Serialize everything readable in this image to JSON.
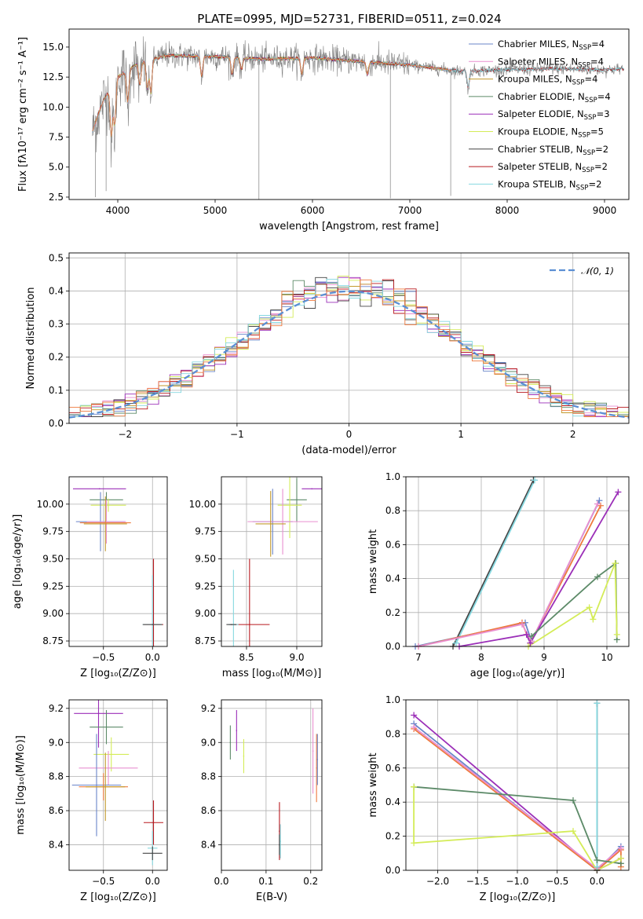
{
  "figure": {
    "title": "PLATE=0995, MJD=52731, FIBERID=0511, z=0.024"
  },
  "colors": {
    "Chabrier MILES": "#6a85c9",
    "Salpeter MILES": "#e98fd0",
    "Kroupa MILES": "#c29a2e",
    "Chabrier ELODIE": "#5c8a68",
    "Salpeter ELODIE": "#9b2fb8",
    "Kroupa ELODIE": "#d4ec58",
    "Chabrier STELIB": "#444444",
    "Salpeter STELIB": "#b8191f",
    "Kroupa STELIB": "#86d8e0",
    "orange": "#ee7a3e",
    "gauss": "#5b8fd4",
    "grid": "#b0b0b0"
  },
  "chart_data": [
    {
      "id": "spectrum",
      "type": "line",
      "title": "PLATE=0995, MJD=52731, FIBERID=0511, z=0.024",
      "xlabel": "wavelength [Angstrom, rest frame]",
      "ylabel": "Flux [fλ10⁻¹⁷ erg cm⁻² s⁻¹ A⁻¹]",
      "xlim": [
        3500,
        9250
      ],
      "ylim": [
        2.3,
        16.5
      ],
      "xticks": [
        4000,
        5000,
        6000,
        7000,
        8000,
        9000
      ],
      "yticks": [
        "2.5",
        "5.0",
        "7.5",
        "10.0",
        "12.5",
        "15.0"
      ],
      "grid": false,
      "legend": "upper-right",
      "series": [
        {
          "name": "Chabrier MILES, N",
          "sub": "SSP",
          "eq": "=4"
        },
        {
          "name": "Salpeter MILES, N",
          "sub": "SSP",
          "eq": "=4"
        },
        {
          "name": "Kroupa MILES, N",
          "sub": "SSP",
          "eq": "=4"
        },
        {
          "name": "Chabrier ELODIE, N",
          "sub": "SSP",
          "eq": "=4"
        },
        {
          "name": "Salpeter ELODIE, N",
          "sub": "SSP",
          "eq": "=3"
        },
        {
          "name": "Kroupa ELODIE, N",
          "sub": "SSP",
          "eq": "=5"
        },
        {
          "name": "Chabrier STELIB, N",
          "sub": "SSP",
          "eq": "=2"
        },
        {
          "name": "Salpeter STELIB, N",
          "sub": "SSP",
          "eq": "=2"
        },
        {
          "name": "Kroupa STELIB, N",
          "sub": "SSP",
          "eq": "=2"
        }
      ],
      "continuum": [
        [
          3740,
          8.0
        ],
        [
          3850,
          10.5
        ],
        [
          4000,
          12.5
        ],
        [
          4200,
          13.6
        ],
        [
          4500,
          14.3
        ],
        [
          5000,
          14.2
        ],
        [
          5500,
          14.0
        ],
        [
          6000,
          14.1
        ],
        [
          6500,
          13.8
        ],
        [
          7000,
          13.5
        ],
        [
          7500,
          13.0
        ],
        [
          8000,
          13.1
        ],
        [
          8500,
          13.2
        ],
        [
          9000,
          13.1
        ],
        [
          9200,
          13.2
        ]
      ]
    },
    {
      "id": "residuals",
      "type": "histogram",
      "xlabel": "(data-model)/error",
      "ylabel": "Normed distribution",
      "xlim": [
        -2.5,
        2.5
      ],
      "ylim": [
        0,
        0.515
      ],
      "xticks": [
        "−2",
        "−1",
        "0",
        "1",
        "2"
      ],
      "xtick_values": [
        -2,
        -1,
        0,
        1,
        2
      ],
      "yticks": [
        "0.0",
        "0.1",
        "0.2",
        "0.3",
        "0.4",
        "0.5"
      ],
      "grid": true,
      "legend": "upper-right",
      "legend_label": "𝒩(0, 1)",
      "bin_width": 0.1
    },
    {
      "id": "age-vs-Z",
      "type": "errorbar",
      "xlabel": "Z [log₁₀(Z/Z⊙)]",
      "ylabel": "age  [log₁₀(age/yr)]",
      "xlim": [
        -0.85,
        0.15
      ],
      "ylim": [
        8.7,
        10.25
      ],
      "xticks": [
        "−0.5",
        "0.0"
      ],
      "xtick_values": [
        -0.5,
        0.0
      ],
      "yticks": [
        "8.75",
        "9.00",
        "9.25",
        "9.50",
        "9.75",
        "10.00"
      ],
      "ytick_values": [
        8.75,
        9.0,
        9.25,
        9.5,
        9.75,
        10.0
      ],
      "grid": true,
      "points": [
        {
          "s": "Salpeter ELODIE",
          "x": -0.54,
          "xe": 0.27,
          "y": 10.14,
          "ye": 0.0
        },
        {
          "s": "Chabrier ELODIE",
          "x": -0.47,
          "xe": 0.17,
          "y": 10.04,
          "ye": 0.07
        },
        {
          "s": "Kroupa ELODIE",
          "x": -0.45,
          "xe": 0.18,
          "y": 9.99,
          "ye": 0.06
        },
        {
          "s": "Chabrier MILES",
          "x": -0.53,
          "xe": 0.25,
          "y": 9.84,
          "ye": 0.27
        },
        {
          "s": "Salpeter MILES",
          "x": -0.47,
          "xe": 0.2,
          "y": 9.84,
          "ye": 0.2
        },
        {
          "s": "Kroupa MILES",
          "x": -0.48,
          "xe": 0.22,
          "y": 9.82,
          "ye": 0.25
        },
        {
          "s": "orange",
          "x": -0.48,
          "xe": 0.26,
          "y": 9.83,
          "ye": 0.0
        },
        {
          "s": "Salpeter STELIB",
          "x": 0.01,
          "xe": 0.1,
          "y": 8.9,
          "ye": 0.6
        },
        {
          "s": "Kroupa STELIB",
          "x": 0.0,
          "xe": 0.1,
          "y": 8.9,
          "ye": 0.45
        },
        {
          "s": "Chabrier STELIB",
          "x": 0.0,
          "xe": 0.1,
          "y": 8.9,
          "ye": 0.0
        }
      ]
    },
    {
      "id": "age-vs-mass",
      "type": "errorbar",
      "xlabel": "mass [log₁₀(M/M⊙)]",
      "ylabel": "",
      "xlim": [
        8.25,
        9.25
      ],
      "ylim": [
        8.7,
        10.25
      ],
      "xticks": [
        "8.5",
        "9.0"
      ],
      "xtick_values": [
        8.5,
        9.0
      ],
      "yticks": [
        "8.75",
        "9.00",
        "9.25",
        "9.50",
        "9.75",
        "10.00"
      ],
      "ytick_values": [
        8.75,
        9.0,
        9.25,
        9.5,
        9.75,
        10.0
      ],
      "grid": true,
      "points": [
        {
          "s": "Salpeter ELODIE",
          "x": 9.15,
          "xe": 0.1,
          "y": 10.14,
          "ye": 0.0
        },
        {
          "s": "Chabrier ELODIE",
          "x": 9.0,
          "xe": 0.1,
          "y": 10.04,
          "ye": 0.2
        },
        {
          "s": "Kroupa ELODIE",
          "x": 8.93,
          "xe": 0.12,
          "y": 9.99,
          "ye": 0.3
        },
        {
          "s": "Chabrier MILES",
          "x": 8.76,
          "xe": 0.2,
          "y": 9.84,
          "ye": 0.3
        },
        {
          "s": "Salpeter MILES",
          "x": 8.86,
          "xe": 0.35,
          "y": 9.84,
          "ye": 0.3
        },
        {
          "s": "Kroupa MILES",
          "x": 8.74,
          "xe": 0.15,
          "y": 9.82,
          "ye": 0.3
        },
        {
          "s": "Salpeter STELIB",
          "x": 8.53,
          "xe": 0.2,
          "y": 8.9,
          "ye": 0.6
        },
        {
          "s": "Kroupa STELIB",
          "x": 8.37,
          "xe": 0.05,
          "y": 8.9,
          "ye": 0.5
        },
        {
          "s": "Chabrier STELIB",
          "x": 8.35,
          "xe": 0.05,
          "y": 8.9,
          "ye": 0.0
        }
      ]
    },
    {
      "id": "mass-weight-vs-age",
      "type": "line",
      "xlabel": "age  [log₁₀(age/yr)]",
      "ylabel": "mass weight",
      "xlim": [
        6.8,
        10.35
      ],
      "ylim": [
        0,
        1.0
      ],
      "xticks": [
        "7",
        "8",
        "9",
        "10"
      ],
      "xtick_values": [
        7,
        8,
        9,
        10
      ],
      "yticks": [
        "0.0",
        "0.2",
        "0.4",
        "0.6",
        "0.8",
        "1.0"
      ],
      "grid": true,
      "series": [
        {
          "s": "Chabrier STELIB",
          "pts": [
            [
              7.55,
              0.0
            ],
            [
              8.83,
              0.98
            ]
          ]
        },
        {
          "s": "Kroupa STELIB",
          "pts": [
            [
              7.6,
              0.02
            ],
            [
              8.85,
              0.98
            ]
          ]
        },
        {
          "s": "Chabrier MILES",
          "pts": [
            [
              6.95,
              0.0
            ],
            [
              8.7,
              0.14
            ],
            [
              8.8,
              0.03
            ],
            [
              9.88,
              0.86
            ]
          ]
        },
        {
          "s": "orange",
          "pts": [
            [
              7.0,
              0.0
            ],
            [
              8.65,
              0.14
            ],
            [
              8.78,
              0.02
            ],
            [
              9.9,
              0.83
            ]
          ]
        },
        {
          "s": "Salpeter MILES",
          "pts": [
            [
              7.0,
              0.0
            ],
            [
              8.65,
              0.13
            ],
            [
              8.8,
              0.03
            ],
            [
              9.85,
              0.84
            ]
          ]
        },
        {
          "s": "Salpeter ELODIE",
          "pts": [
            [
              7.65,
              0.0
            ],
            [
              8.72,
              0.07
            ],
            [
              8.78,
              0.02
            ],
            [
              10.18,
              0.91
            ]
          ]
        },
        {
          "s": "Chabrier ELODIE",
          "pts": [
            [
              8.8,
              0.06
            ],
            [
              9.85,
              0.41
            ],
            [
              10.14,
              0.49
            ],
            [
              10.16,
              0.04
            ]
          ]
        },
        {
          "s": "Kroupa ELODIE",
          "pts": [
            [
              8.75,
              0.0
            ],
            [
              9.72,
              0.23
            ],
            [
              9.78,
              0.16
            ],
            [
              10.13,
              0.49
            ],
            [
              10.16,
              0.07
            ]
          ]
        }
      ]
    },
    {
      "id": "mass-vs-Z",
      "type": "errorbar",
      "xlabel": "Z [log₁₀(Z/Z⊙)]",
      "ylabel": "mass [log₁₀(M/M⊙)]",
      "xlim": [
        -0.85,
        0.15
      ],
      "ylim": [
        8.25,
        9.25
      ],
      "xticks": [
        "−0.5",
        "0.0"
      ],
      "xtick_values": [
        -0.5,
        0.0
      ],
      "yticks": [
        "8.4",
        "8.6",
        "8.8",
        "9.0",
        "9.2"
      ],
      "ytick_values": [
        8.4,
        8.6,
        8.8,
        9.0,
        9.2
      ],
      "grid": true,
      "points": [
        {
          "s": "Salpeter ELODIE",
          "x": -0.55,
          "xe": 0.25,
          "y": 9.17,
          "ye": 0.2
        },
        {
          "s": "Chabrier ELODIE",
          "x": -0.47,
          "xe": 0.17,
          "y": 9.09,
          "ye": 0.1
        },
        {
          "s": "Kroupa ELODIE",
          "x": -0.42,
          "xe": 0.18,
          "y": 8.93,
          "ye": 0.1
        },
        {
          "s": "Salpeter MILES",
          "x": -0.45,
          "xe": 0.3,
          "y": 8.85,
          "ye": 0.1
        },
        {
          "s": "Chabrier MILES",
          "x": -0.57,
          "xe": 0.25,
          "y": 8.75,
          "ye": 0.3
        },
        {
          "s": "orange",
          "x": -0.5,
          "xe": 0.25,
          "y": 8.74,
          "ye": 0.08
        },
        {
          "s": "Kroupa MILES",
          "x": -0.48,
          "xe": 0.2,
          "y": 8.74,
          "ye": 0.2
        },
        {
          "s": "Salpeter STELIB",
          "x": 0.01,
          "xe": 0.1,
          "y": 8.53,
          "ye": 0.13
        },
        {
          "s": "Kroupa STELIB",
          "x": 0.0,
          "xe": 0.05,
          "y": 8.38,
          "ye": 0.1
        },
        {
          "s": "Chabrier STELIB",
          "x": 0.0,
          "xe": 0.1,
          "y": 8.35,
          "ye": 0.04
        }
      ]
    },
    {
      "id": "mass-vs-ebv",
      "type": "errorbar",
      "xlabel": "E(B-V)",
      "ylabel": "",
      "xlim": [
        0.0,
        0.225
      ],
      "ylim": [
        8.25,
        9.25
      ],
      "xticks": [
        "0.0",
        "0.1",
        "0.2"
      ],
      "xtick_values": [
        0.0,
        0.1,
        0.2
      ],
      "yticks": [
        "8.4",
        "8.6",
        "8.8",
        "9.0",
        "9.2"
      ],
      "ytick_values": [
        8.4,
        8.6,
        8.8,
        9.0,
        9.2
      ],
      "grid": true,
      "points": [
        {
          "s": "Chabrier ELODIE",
          "x": 0.02,
          "xe": 0,
          "y": 9.0,
          "ye": 0.1
        },
        {
          "s": "Salpeter ELODIE",
          "x": 0.034,
          "xe": 0,
          "y": 9.07,
          "ye": 0.12
        },
        {
          "s": "Kroupa ELODIE",
          "x": 0.05,
          "xe": 0,
          "y": 8.92,
          "ye": 0.1
        },
        {
          "s": "Salpeter MILES",
          "x": 0.205,
          "xe": 0,
          "y": 8.95,
          "ye": 0.25
        },
        {
          "s": "orange",
          "x": 0.213,
          "xe": 0,
          "y": 8.85,
          "ye": 0.2
        },
        {
          "s": "Chabrier MILES",
          "x": 0.215,
          "xe": 0,
          "y": 8.9,
          "ye": 0.15
        },
        {
          "s": "Salpeter STELIB",
          "x": 0.13,
          "xe": 0,
          "y": 8.48,
          "ye": 0.17
        },
        {
          "s": "Kroupa STELIB",
          "x": 0.132,
          "xe": 0,
          "y": 8.42,
          "ye": 0.1
        },
        {
          "s": "Chabrier STELIB",
          "x": 0.13,
          "xe": 0,
          "y": 8.4,
          "ye": 0.06
        }
      ]
    },
    {
      "id": "mass-weight-vs-Z",
      "type": "line",
      "xlabel": "Z [log₁₀(Z/Z⊙)]",
      "ylabel": "mass weight",
      "xlim": [
        -2.4,
        0.4
      ],
      "ylim": [
        0,
        1.0
      ],
      "xticks": [
        "−2.0",
        "−1.5",
        "−1.0",
        "−0.5",
        "0.0"
      ],
      "xtick_values": [
        -2.0,
        -1.5,
        -1.0,
        -0.5,
        0.0
      ],
      "yticks": [
        "0.0",
        "0.2",
        "0.4",
        "0.6",
        "0.8",
        "1.0"
      ],
      "grid": true,
      "series": [
        {
          "s": "Salpeter ELODIE",
          "pts": [
            [
              -2.3,
              0.91
            ],
            [
              0.0,
              0.0
            ],
            [
              0.3,
              0.07
            ]
          ]
        },
        {
          "s": "Chabrier MILES",
          "pts": [
            [
              -2.3,
              0.86
            ],
            [
              0.0,
              0.0
            ],
            [
              0.3,
              0.14
            ]
          ]
        },
        {
          "s": "orange",
          "pts": [
            [
              -2.3,
              0.83
            ],
            [
              0.0,
              0.0
            ],
            [
              0.3,
              0.12
            ],
            [
              0.3,
              0.02
            ]
          ]
        },
        {
          "s": "Salpeter MILES",
          "pts": [
            [
              -2.3,
              0.84
            ],
            [
              0.0,
              0.01
            ],
            [
              0.3,
              0.13
            ]
          ]
        },
        {
          "s": "Chabrier ELODIE",
          "pts": [
            [
              -2.3,
              0.49
            ],
            [
              -0.3,
              0.41
            ],
            [
              0.0,
              0.06
            ],
            [
              0.3,
              0.04
            ]
          ]
        },
        {
          "s": "Kroupa ELODIE",
          "pts": [
            [
              -2.3,
              0.49
            ],
            [
              -2.3,
              0.16
            ],
            [
              -0.3,
              0.23
            ],
            [
              0.0,
              0.0
            ],
            [
              0.3,
              0.07
            ]
          ]
        },
        {
          "s": "Chabrier STELIB",
          "pts": [
            [
              0.0,
              0.0
            ],
            [
              0.0,
              0.98
            ]
          ]
        },
        {
          "s": "Kroupa STELIB",
          "pts": [
            [
              0.0,
              0.02
            ],
            [
              0.0,
              0.98
            ]
          ]
        }
      ]
    }
  ]
}
